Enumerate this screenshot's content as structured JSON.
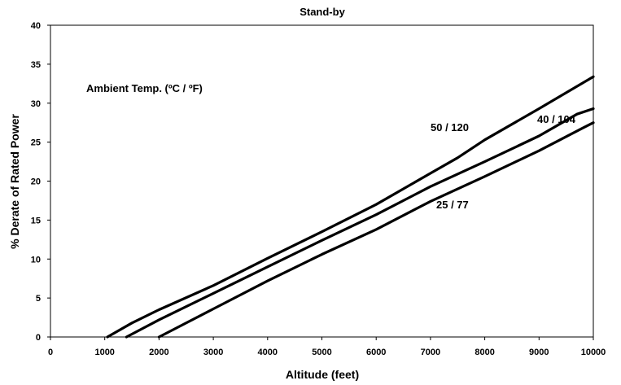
{
  "chart_data": {
    "type": "line",
    "title": "Stand-by",
    "xlabel": "Altitude (feet)",
    "ylabel": "% Derate of Rated Power",
    "xlim": [
      0,
      10000
    ],
    "ylim": [
      0,
      40
    ],
    "x_ticks": [
      "0",
      "1000",
      "2000",
      "3000",
      "4000",
      "5000",
      "6000",
      "7000",
      "8000",
      "9000",
      "10000"
    ],
    "y_ticks": [
      "0",
      "5",
      "10",
      "15",
      "20",
      "25",
      "30",
      "35",
      "40"
    ],
    "grid": false,
    "legend_title": "Ambient Temp. (ºC / ºF)",
    "series": [
      {
        "name": "50 / 120",
        "points": [
          [
            1050,
            0
          ],
          [
            1500,
            1.8
          ],
          [
            2000,
            3.5
          ],
          [
            3000,
            6.6
          ],
          [
            4000,
            10.1
          ],
          [
            5000,
            13.5
          ],
          [
            6000,
            17.0
          ],
          [
            7000,
            21.0
          ],
          [
            7500,
            23.0
          ],
          [
            8000,
            25.3
          ],
          [
            9000,
            29.3
          ],
          [
            10000,
            33.4
          ]
        ]
      },
      {
        "name": "40 / 104",
        "points": [
          [
            1400,
            0
          ],
          [
            2000,
            2.2
          ],
          [
            3000,
            5.6
          ],
          [
            4000,
            9.0
          ],
          [
            5000,
            12.4
          ],
          [
            6000,
            15.7
          ],
          [
            7000,
            19.3
          ],
          [
            8000,
            22.5
          ],
          [
            9000,
            25.8
          ],
          [
            9700,
            28.6
          ],
          [
            10000,
            29.3
          ]
        ]
      },
      {
        "name": "25 / 77",
        "points": [
          [
            2000,
            0
          ],
          [
            3000,
            3.6
          ],
          [
            4000,
            7.2
          ],
          [
            5000,
            10.6
          ],
          [
            6000,
            13.8
          ],
          [
            7000,
            17.4
          ],
          [
            8000,
            20.6
          ],
          [
            9000,
            23.9
          ],
          [
            9800,
            26.8
          ],
          [
            10000,
            27.5
          ]
        ]
      }
    ]
  }
}
